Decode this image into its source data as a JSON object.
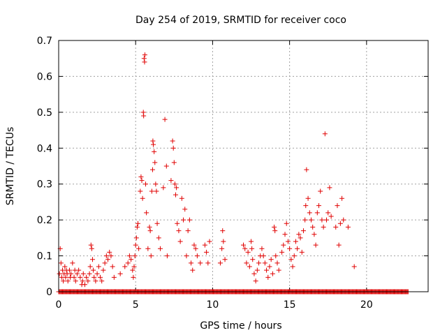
{
  "chart_data": {
    "type": "scatter",
    "title": "Day 254 of 2019, SRMTID for receiver coco",
    "xlabel": "GPS time / hours",
    "ylabel": "SRMTID / TECUs",
    "xlim": [
      0,
      24
    ],
    "ylim": [
      0,
      0.7
    ],
    "xticks": [
      0,
      5,
      10,
      15,
      20
    ],
    "yticks": [
      0,
      0.1,
      0.2,
      0.3,
      0.4,
      0.5,
      0.6,
      0.7
    ],
    "xtick_labels": [
      "0",
      "5",
      "10",
      "15",
      "20"
    ],
    "ytick_labels": [
      "0",
      "0.1",
      "0.2",
      "0.3",
      "0.4",
      "0.5",
      "0.6",
      "0.7"
    ],
    "marker": "+",
    "color": "#e00000",
    "grid": true,
    "legend": "none",
    "zero_baseline_range": [
      0,
      22.7
    ],
    "series": [
      {
        "name": "SRMTID",
        "points": [
          [
            0.05,
            0.05
          ],
          [
            0.1,
            0.12
          ],
          [
            0.15,
            0.08
          ],
          [
            0.2,
            0.04
          ],
          [
            0.25,
            0.06
          ],
          [
            0.3,
            0.03
          ],
          [
            0.35,
            0.05
          ],
          [
            0.4,
            0.07
          ],
          [
            0.45,
            0.04
          ],
          [
            0.5,
            0.06
          ],
          [
            0.55,
            0.05
          ],
          [
            0.6,
            0.03
          ],
          [
            0.7,
            0.06
          ],
          [
            0.75,
            0.04
          ],
          [
            0.8,
            0.05
          ],
          [
            0.9,
            0.08
          ],
          [
            1.0,
            0.04
          ],
          [
            1.05,
            0.06
          ],
          [
            1.1,
            0.03
          ],
          [
            1.2,
            0.05
          ],
          [
            1.3,
            0.06
          ],
          [
            1.4,
            0.04
          ],
          [
            1.5,
            0.02
          ],
          [
            1.55,
            0.03
          ],
          [
            1.6,
            0.05
          ],
          [
            1.7,
            0.02
          ],
          [
            1.8,
            0.04
          ],
          [
            1.9,
            0.03
          ],
          [
            2.0,
            0.05
          ],
          [
            2.05,
            0.07
          ],
          [
            2.1,
            0.13
          ],
          [
            2.15,
            0.12
          ],
          [
            2.2,
            0.09
          ],
          [
            2.25,
            0.06
          ],
          [
            2.3,
            0.04
          ],
          [
            2.4,
            0.03
          ],
          [
            2.5,
            0.05
          ],
          [
            2.6,
            0.07
          ],
          [
            2.7,
            0.04
          ],
          [
            2.8,
            0.03
          ],
          [
            2.9,
            0.06
          ],
          [
            3.0,
            0.08
          ],
          [
            3.1,
            0.1
          ],
          [
            3.2,
            0.09
          ],
          [
            3.3,
            0.11
          ],
          [
            3.4,
            0.1
          ],
          [
            3.5,
            0.07
          ],
          [
            3.6,
            0.04
          ],
          [
            4.0,
            0.05
          ],
          [
            4.3,
            0.07
          ],
          [
            4.5,
            0.08
          ],
          [
            4.6,
            0.1
          ],
          [
            4.7,
            0.09
          ],
          [
            4.8,
            0.06
          ],
          [
            4.85,
            0.04
          ],
          [
            4.9,
            0.07
          ],
          [
            4.95,
            0.1
          ],
          [
            5.0,
            0.13
          ],
          [
            5.05,
            0.15
          ],
          [
            5.1,
            0.18
          ],
          [
            5.15,
            0.19
          ],
          [
            5.2,
            0.12
          ],
          [
            5.3,
            0.28
          ],
          [
            5.35,
            0.32
          ],
          [
            5.4,
            0.31
          ],
          [
            5.45,
            0.26
          ],
          [
            5.5,
            0.5
          ],
          [
            5.52,
            0.49
          ],
          [
            5.55,
            0.65
          ],
          [
            5.58,
            0.64
          ],
          [
            5.6,
            0.66
          ],
          [
            5.65,
            0.3
          ],
          [
            5.7,
            0.22
          ],
          [
            5.8,
            0.12
          ],
          [
            5.9,
            0.18
          ],
          [
            5.95,
            0.17
          ],
          [
            6.0,
            0.1
          ],
          [
            6.05,
            0.28
          ],
          [
            6.1,
            0.34
          ],
          [
            6.12,
            0.42
          ],
          [
            6.15,
            0.41
          ],
          [
            6.2,
            0.39
          ],
          [
            6.25,
            0.36
          ],
          [
            6.3,
            0.3
          ],
          [
            6.35,
            0.28
          ],
          [
            6.4,
            0.19
          ],
          [
            6.5,
            0.15
          ],
          [
            6.6,
            0.12
          ],
          [
            6.8,
            0.29
          ],
          [
            6.9,
            0.48
          ],
          [
            7.0,
            0.35
          ],
          [
            7.05,
            0.1
          ],
          [
            7.3,
            0.31
          ],
          [
            7.4,
            0.42
          ],
          [
            7.45,
            0.4
          ],
          [
            7.5,
            0.36
          ],
          [
            7.55,
            0.3
          ],
          [
            7.6,
            0.27
          ],
          [
            7.65,
            0.29
          ],
          [
            7.7,
            0.19
          ],
          [
            7.8,
            0.17
          ],
          [
            7.9,
            0.14
          ],
          [
            8.0,
            0.26
          ],
          [
            8.1,
            0.2
          ],
          [
            8.2,
            0.23
          ],
          [
            8.3,
            0.1
          ],
          [
            8.4,
            0.17
          ],
          [
            8.5,
            0.2
          ],
          [
            8.6,
            0.08
          ],
          [
            8.7,
            0.06
          ],
          [
            8.8,
            0.13
          ],
          [
            8.9,
            0.12
          ],
          [
            9.0,
            0.1
          ],
          [
            9.2,
            0.08
          ],
          [
            9.5,
            0.13
          ],
          [
            9.6,
            0.11
          ],
          [
            9.7,
            0.08
          ],
          [
            9.8,
            0.14
          ],
          [
            10.5,
            0.08
          ],
          [
            10.6,
            0.12
          ],
          [
            10.65,
            0.17
          ],
          [
            10.7,
            0.14
          ],
          [
            10.8,
            0.09
          ],
          [
            12.0,
            0.13
          ],
          [
            12.1,
            0.12
          ],
          [
            12.2,
            0.08
          ],
          [
            12.3,
            0.11
          ],
          [
            12.4,
            0.07
          ],
          [
            12.5,
            0.14
          ],
          [
            12.55,
            0.12
          ],
          [
            12.6,
            0.09
          ],
          [
            12.7,
            0.05
          ],
          [
            12.8,
            0.03
          ],
          [
            12.9,
            0.06
          ],
          [
            13.0,
            0.08
          ],
          [
            13.1,
            0.1
          ],
          [
            13.2,
            0.12
          ],
          [
            13.3,
            0.1
          ],
          [
            13.4,
            0.08
          ],
          [
            13.5,
            0.06
          ],
          [
            13.6,
            0.04
          ],
          [
            13.7,
            0.07
          ],
          [
            13.8,
            0.09
          ],
          [
            13.9,
            0.05
          ],
          [
            14.0,
            0.18
          ],
          [
            14.05,
            0.17
          ],
          [
            14.1,
            0.1
          ],
          [
            14.2,
            0.08
          ],
          [
            14.3,
            0.06
          ],
          [
            14.5,
            0.11
          ],
          [
            14.6,
            0.13
          ],
          [
            14.7,
            0.16
          ],
          [
            14.8,
            0.19
          ],
          [
            14.9,
            0.14
          ],
          [
            15.0,
            0.12
          ],
          [
            15.1,
            0.09
          ],
          [
            15.2,
            0.07
          ],
          [
            15.3,
            0.1
          ],
          [
            15.4,
            0.14
          ],
          [
            15.5,
            0.12
          ],
          [
            15.6,
            0.16
          ],
          [
            15.7,
            0.15
          ],
          [
            15.8,
            0.11
          ],
          [
            15.9,
            0.17
          ],
          [
            16.0,
            0.2
          ],
          [
            16.05,
            0.24
          ],
          [
            16.1,
            0.34
          ],
          [
            16.2,
            0.26
          ],
          [
            16.3,
            0.22
          ],
          [
            16.4,
            0.2
          ],
          [
            16.5,
            0.18
          ],
          [
            16.6,
            0.16
          ],
          [
            16.7,
            0.13
          ],
          [
            16.8,
            0.22
          ],
          [
            16.9,
            0.24
          ],
          [
            17.0,
            0.28
          ],
          [
            17.1,
            0.2
          ],
          [
            17.2,
            0.18
          ],
          [
            17.3,
            0.44
          ],
          [
            17.4,
            0.2
          ],
          [
            17.5,
            0.22
          ],
          [
            17.6,
            0.29
          ],
          [
            17.7,
            0.21
          ],
          [
            18.0,
            0.18
          ],
          [
            18.1,
            0.24
          ],
          [
            18.2,
            0.13
          ],
          [
            18.3,
            0.19
          ],
          [
            18.4,
            0.26
          ],
          [
            18.5,
            0.2
          ],
          [
            18.8,
            0.18
          ],
          [
            19.2,
            0.07
          ]
        ]
      }
    ]
  }
}
